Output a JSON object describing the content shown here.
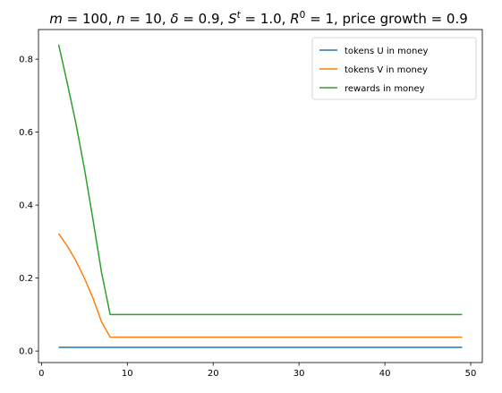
{
  "chart_data": {
    "type": "line",
    "title_parts": [
      {
        "t": "m",
        "style": "italic"
      },
      {
        "t": " = 100, "
      },
      {
        "t": "n",
        "style": "italic"
      },
      {
        "t": " = 10, "
      },
      {
        "t": "δ",
        "style": "italic"
      },
      {
        "t": " = 0.9, "
      },
      {
        "t": "S",
        "style": "italic"
      },
      {
        "t": "t",
        "style": "italic",
        "sup": true
      },
      {
        "t": " = 1.0, "
      },
      {
        "t": "R",
        "style": "italic"
      },
      {
        "t": "0",
        "sup": true
      },
      {
        "t": " = 1, price growth = 0.9"
      }
    ],
    "xlabel": "",
    "ylabel": "",
    "xlim": [
      -0.35,
      51.35
    ],
    "ylim": [
      -0.0316,
      0.8812
    ],
    "xticks": [
      0,
      10,
      20,
      30,
      40,
      50
    ],
    "yticks": [
      0.0,
      0.2,
      0.4,
      0.6,
      0.8
    ],
    "xtick_labels": [
      "0",
      "10",
      "20",
      "30",
      "40",
      "50"
    ],
    "ytick_labels": [
      "0.0",
      "0.2",
      "0.4",
      "0.6",
      "0.8"
    ],
    "grid": false,
    "legend_position": "top-right",
    "x": [
      2,
      3,
      4,
      5,
      6,
      7,
      8,
      9,
      10,
      11,
      12,
      13,
      14,
      15,
      16,
      17,
      18,
      19,
      20,
      21,
      22,
      23,
      24,
      25,
      26,
      27,
      28,
      29,
      30,
      31,
      32,
      33,
      34,
      35,
      36,
      37,
      38,
      39,
      40,
      41,
      42,
      43,
      44,
      45,
      46,
      47,
      48,
      49
    ],
    "series": [
      {
        "name": "tokens U in money",
        "color": "#1f77b4",
        "values": [
          0.01,
          0.01,
          0.01,
          0.01,
          0.01,
          0.01,
          0.01,
          0.01,
          0.01,
          0.01,
          0.01,
          0.01,
          0.01,
          0.01,
          0.01,
          0.01,
          0.01,
          0.01,
          0.01,
          0.01,
          0.01,
          0.01,
          0.01,
          0.01,
          0.01,
          0.01,
          0.01,
          0.01,
          0.01,
          0.01,
          0.01,
          0.01,
          0.01,
          0.01,
          0.01,
          0.01,
          0.01,
          0.01,
          0.01,
          0.01,
          0.01,
          0.01,
          0.01,
          0.01,
          0.01,
          0.01,
          0.01,
          0.01
        ]
      },
      {
        "name": "tokens V in money",
        "color": "#ff7f0e",
        "values": [
          0.322,
          0.288,
          0.248,
          0.2,
          0.145,
          0.08,
          0.038,
          0.038,
          0.038,
          0.038,
          0.038,
          0.038,
          0.038,
          0.038,
          0.038,
          0.038,
          0.038,
          0.038,
          0.038,
          0.038,
          0.038,
          0.038,
          0.038,
          0.038,
          0.038,
          0.038,
          0.038,
          0.038,
          0.038,
          0.038,
          0.038,
          0.038,
          0.038,
          0.038,
          0.038,
          0.038,
          0.038,
          0.038,
          0.038,
          0.038,
          0.038,
          0.038,
          0.038,
          0.038,
          0.038,
          0.038,
          0.038,
          0.038
        ]
      },
      {
        "name": "rewards in money",
        "color": "#2ca02c",
        "values": [
          0.84,
          0.735,
          0.625,
          0.5,
          0.36,
          0.215,
          0.1,
          0.1,
          0.1,
          0.1,
          0.1,
          0.1,
          0.1,
          0.1,
          0.1,
          0.1,
          0.1,
          0.1,
          0.1,
          0.1,
          0.1,
          0.1,
          0.1,
          0.1,
          0.1,
          0.1,
          0.1,
          0.1,
          0.1,
          0.1,
          0.1,
          0.1,
          0.1,
          0.1,
          0.1,
          0.1,
          0.1,
          0.1,
          0.1,
          0.1,
          0.1,
          0.1,
          0.1,
          0.1,
          0.1,
          0.1,
          0.1,
          0.1
        ]
      }
    ]
  }
}
